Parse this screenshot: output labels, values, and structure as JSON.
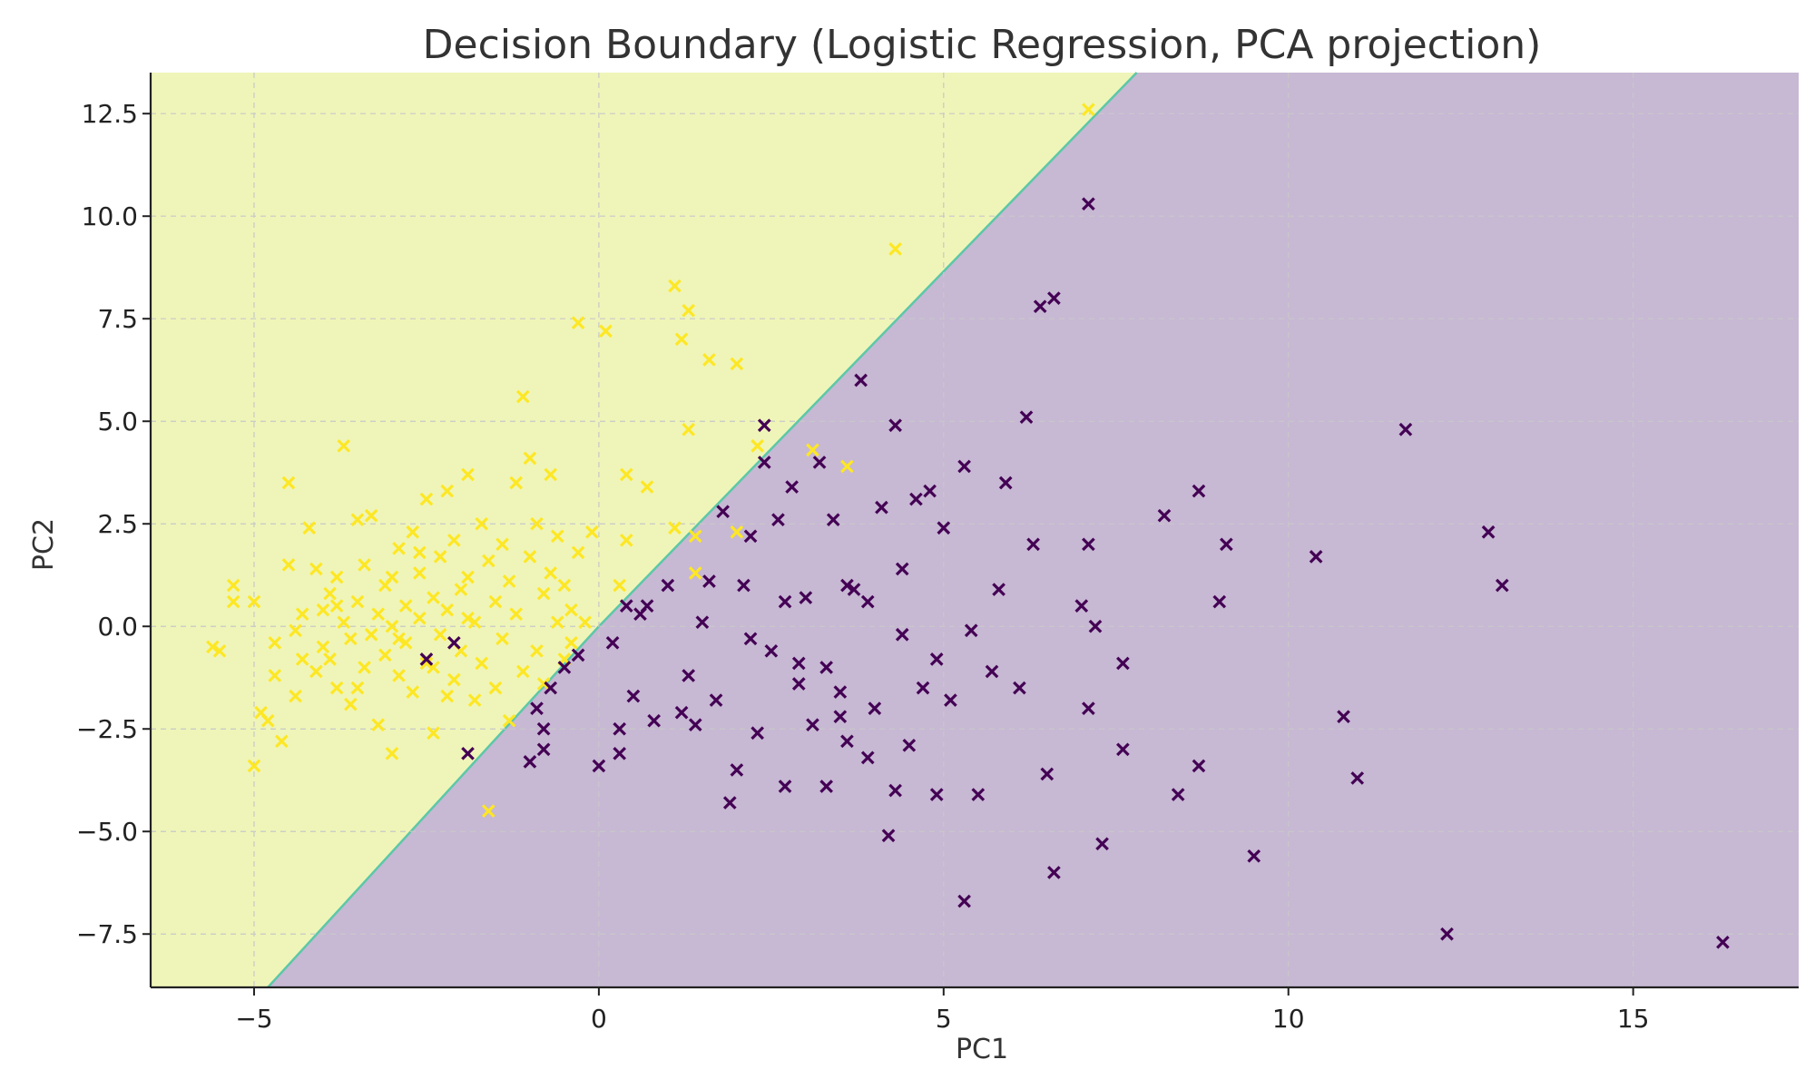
{
  "chart_data": {
    "type": "scatter",
    "title": "Decision Boundary (Logistic Regression, PCA projection)",
    "xlabel": "PC1",
    "ylabel": "PC2",
    "xlim": [
      -6.5,
      17.4
    ],
    "ylim": [
      -8.8,
      13.5
    ],
    "xticks": [
      -5,
      0,
      5,
      10,
      15
    ],
    "xtick_labels": [
      "−5",
      "0",
      "5",
      "10",
      "15"
    ],
    "yticks": [
      -7.5,
      -5.0,
      -2.5,
      0.0,
      2.5,
      5.0,
      7.5,
      10.0,
      12.5
    ],
    "ytick_labels": [
      "−7.5",
      "−5.0",
      "−2.5",
      "0.0",
      "2.5",
      "5.0",
      "7.5",
      "10.0",
      "12.5"
    ],
    "grid": true,
    "legend": "none",
    "colors": {
      "class_0_point": "#440154",
      "class_1_point": "#fde725",
      "class_0_region": "#c7b8d4",
      "class_1_region": "#eff5b8",
      "boundary": "#5cc8a8",
      "grid": "#c8c8c8",
      "axis": "#222222"
    },
    "decision_boundary": {
      "model": "logistic regression",
      "line": [
        [
          -4.8,
          -8.8
        ],
        [
          0.0,
          0.0
        ],
        [
          7.8,
          13.5
        ]
      ]
    },
    "series": [
      {
        "class": 1,
        "marker": "x",
        "points": [
          [
            -5.6,
            -0.5
          ],
          [
            -5.5,
            -0.6
          ],
          [
            -5.3,
            0.6
          ],
          [
            -5.3,
            1.0
          ],
          [
            -5.0,
            0.6
          ],
          [
            -5.0,
            -3.4
          ],
          [
            -4.9,
            -2.1
          ],
          [
            -4.8,
            -2.3
          ],
          [
            -4.7,
            -0.4
          ],
          [
            -4.7,
            -1.2
          ],
          [
            -4.6,
            -2.8
          ],
          [
            -4.5,
            3.5
          ],
          [
            -4.5,
            1.5
          ],
          [
            -4.4,
            -0.1
          ],
          [
            -4.4,
            -1.7
          ],
          [
            -4.3,
            0.3
          ],
          [
            -4.2,
            2.4
          ],
          [
            -4.1,
            -1.1
          ],
          [
            -4.1,
            1.4
          ],
          [
            -4.0,
            -0.5
          ],
          [
            -4.0,
            0.4
          ],
          [
            -3.9,
            -0.8
          ],
          [
            -3.9,
            0.8
          ],
          [
            -3.8,
            1.2
          ],
          [
            -3.8,
            -1.5
          ],
          [
            -3.7,
            0.1
          ],
          [
            -3.7,
            4.4
          ],
          [
            -3.6,
            -0.3
          ],
          [
            -3.6,
            -1.9
          ],
          [
            -3.5,
            2.6
          ],
          [
            -3.5,
            0.6
          ],
          [
            -3.4,
            -1.0
          ],
          [
            -3.4,
            1.5
          ],
          [
            -3.3,
            -0.2
          ],
          [
            -3.3,
            2.7
          ],
          [
            -3.2,
            0.3
          ],
          [
            -3.2,
            -2.4
          ],
          [
            -3.1,
            -0.7
          ],
          [
            -3.1,
            1.0
          ],
          [
            -3.0,
            -3.1
          ],
          [
            -3.0,
            0.0
          ],
          [
            -2.9,
            -1.2
          ],
          [
            -2.9,
            1.9
          ],
          [
            -2.8,
            0.5
          ],
          [
            -2.8,
            -0.4
          ],
          [
            -2.7,
            2.3
          ],
          [
            -2.7,
            -1.6
          ],
          [
            -2.6,
            1.3
          ],
          [
            -2.6,
            0.2
          ],
          [
            -2.5,
            3.1
          ],
          [
            -2.5,
            -0.9
          ],
          [
            -2.4,
            0.7
          ],
          [
            -2.4,
            -2.6
          ],
          [
            -2.3,
            1.7
          ],
          [
            -2.3,
            -0.2
          ],
          [
            -2.2,
            3.3
          ],
          [
            -2.2,
            0.4
          ],
          [
            -2.1,
            -1.3
          ],
          [
            -2.1,
            2.1
          ],
          [
            -2.0,
            0.9
          ],
          [
            -2.0,
            -0.6
          ],
          [
            -1.9,
            3.7
          ],
          [
            -1.9,
            1.2
          ],
          [
            -1.8,
            -1.8
          ],
          [
            -1.8,
            0.1
          ],
          [
            -1.7,
            2.5
          ],
          [
            -1.7,
            -0.9
          ],
          [
            -1.6,
            1.6
          ],
          [
            -1.6,
            -4.5
          ],
          [
            -1.5,
            0.6
          ],
          [
            -1.5,
            -1.5
          ],
          [
            -1.4,
            2.0
          ],
          [
            -1.4,
            -0.3
          ],
          [
            -1.3,
            1.1
          ],
          [
            -1.3,
            -2.3
          ],
          [
            -1.2,
            3.5
          ],
          [
            -1.2,
            0.3
          ],
          [
            -1.1,
            5.6
          ],
          [
            -1.1,
            -1.1
          ],
          [
            -1.0,
            1.7
          ],
          [
            -1.0,
            4.1
          ],
          [
            -0.9,
            -0.6
          ],
          [
            -0.9,
            2.5
          ],
          [
            -0.8,
            0.8
          ],
          [
            -0.8,
            -1.4
          ],
          [
            -0.7,
            3.7
          ],
          [
            -0.7,
            1.3
          ],
          [
            -0.6,
            0.1
          ],
          [
            -0.6,
            2.2
          ],
          [
            -0.5,
            -0.8
          ],
          [
            -0.5,
            1.0
          ],
          [
            -0.4,
            0.4
          ],
          [
            -0.4,
            -0.4
          ],
          [
            -0.3,
            1.8
          ],
          [
            -0.3,
            7.4
          ],
          [
            -0.2,
            0.1
          ],
          [
            -0.1,
            2.3
          ],
          [
            0.1,
            7.2
          ],
          [
            0.3,
            1.0
          ],
          [
            0.4,
            2.1
          ],
          [
            0.4,
            3.7
          ],
          [
            0.7,
            3.4
          ],
          [
            1.1,
            8.3
          ],
          [
            1.1,
            2.4
          ],
          [
            1.2,
            7.0
          ],
          [
            1.3,
            7.7
          ],
          [
            1.3,
            4.8
          ],
          [
            1.4,
            2.2
          ],
          [
            1.4,
            1.3
          ],
          [
            1.6,
            6.5
          ],
          [
            2.0,
            6.4
          ],
          [
            2.0,
            2.3
          ],
          [
            2.3,
            4.4
          ],
          [
            3.1,
            4.3
          ],
          [
            3.6,
            3.9
          ],
          [
            4.3,
            9.2
          ],
          [
            7.1,
            12.6
          ],
          [
            -2.9,
            -0.3
          ],
          [
            -3.5,
            -1.5
          ],
          [
            -4.3,
            -0.8
          ],
          [
            -2.6,
            1.8
          ],
          [
            -1.9,
            0.2
          ],
          [
            -2.4,
            -1.0
          ],
          [
            -3.8,
            0.5
          ],
          [
            -3.0,
            1.2
          ],
          [
            -2.2,
            -1.7
          ]
        ]
      },
      {
        "class": 0,
        "marker": "x",
        "points": [
          [
            -2.5,
            -0.8
          ],
          [
            -2.1,
            -0.4
          ],
          [
            -1.9,
            -3.1
          ],
          [
            -1.0,
            -3.3
          ],
          [
            -0.9,
            -2.0
          ],
          [
            -0.8,
            -2.5
          ],
          [
            -0.8,
            -3.0
          ],
          [
            -0.7,
            -1.5
          ],
          [
            -0.5,
            -1.0
          ],
          [
            -0.3,
            -0.7
          ],
          [
            0.0,
            -3.4
          ],
          [
            0.2,
            -0.4
          ],
          [
            0.3,
            -3.1
          ],
          [
            0.3,
            -2.5
          ],
          [
            0.4,
            0.5
          ],
          [
            0.5,
            -1.7
          ],
          [
            0.6,
            0.3
          ],
          [
            0.7,
            0.5
          ],
          [
            0.8,
            -2.3
          ],
          [
            1.0,
            1.0
          ],
          [
            1.2,
            -2.1
          ],
          [
            1.3,
            -1.2
          ],
          [
            1.4,
            -2.4
          ],
          [
            1.6,
            1.1
          ],
          [
            1.7,
            -1.8
          ],
          [
            1.8,
            2.8
          ],
          [
            1.9,
            -4.3
          ],
          [
            2.0,
            -3.5
          ],
          [
            2.1,
            1.0
          ],
          [
            2.2,
            2.2
          ],
          [
            2.3,
            -2.6
          ],
          [
            2.4,
            4.0
          ],
          [
            2.4,
            4.9
          ],
          [
            2.5,
            -0.6
          ],
          [
            2.6,
            2.6
          ],
          [
            2.7,
            -3.9
          ],
          [
            2.8,
            3.4
          ],
          [
            2.9,
            -1.4
          ],
          [
            3.0,
            0.7
          ],
          [
            3.1,
            -2.4
          ],
          [
            3.2,
            4.0
          ],
          [
            3.3,
            -3.9
          ],
          [
            3.3,
            -1.0
          ],
          [
            3.4,
            2.6
          ],
          [
            3.5,
            -2.2
          ],
          [
            3.6,
            1.0
          ],
          [
            3.7,
            0.9
          ],
          [
            3.8,
            6.0
          ],
          [
            3.9,
            -3.2
          ],
          [
            4.0,
            -2.0
          ],
          [
            4.1,
            2.9
          ],
          [
            4.2,
            -5.1
          ],
          [
            4.3,
            4.9
          ],
          [
            4.3,
            -4.0
          ],
          [
            4.4,
            1.4
          ],
          [
            4.5,
            -2.9
          ],
          [
            4.6,
            3.1
          ],
          [
            4.7,
            -1.5
          ],
          [
            4.8,
            3.3
          ],
          [
            4.9,
            -4.1
          ],
          [
            5.0,
            2.4
          ],
          [
            5.1,
            -1.8
          ],
          [
            5.3,
            3.9
          ],
          [
            5.3,
            -6.7
          ],
          [
            5.4,
            -0.1
          ],
          [
            5.5,
            -4.1
          ],
          [
            5.7,
            -1.1
          ],
          [
            5.9,
            3.5
          ],
          [
            6.1,
            -1.5
          ],
          [
            6.2,
            5.1
          ],
          [
            6.3,
            2.0
          ],
          [
            6.4,
            7.8
          ],
          [
            6.5,
            -3.6
          ],
          [
            6.6,
            8.0
          ],
          [
            6.6,
            -6.0
          ],
          [
            7.0,
            0.5
          ],
          [
            7.1,
            10.3
          ],
          [
            7.1,
            2.0
          ],
          [
            7.1,
            -2.0
          ],
          [
            7.2,
            0.0
          ],
          [
            7.3,
            -5.3
          ],
          [
            7.6,
            -0.9
          ],
          [
            7.6,
            -3.0
          ],
          [
            8.2,
            2.7
          ],
          [
            8.4,
            -4.1
          ],
          [
            8.7,
            3.3
          ],
          [
            8.7,
            -3.4
          ],
          [
            9.0,
            0.6
          ],
          [
            9.1,
            2.0
          ],
          [
            9.5,
            -5.6
          ],
          [
            10.4,
            1.7
          ],
          [
            10.8,
            -2.2
          ],
          [
            11.0,
            -3.7
          ],
          [
            11.7,
            4.8
          ],
          [
            12.3,
            -7.5
          ],
          [
            12.9,
            2.3
          ],
          [
            13.1,
            1.0
          ],
          [
            16.3,
            -7.7
          ],
          [
            2.7,
            0.6
          ],
          [
            3.5,
            -1.6
          ],
          [
            4.9,
            -0.8
          ],
          [
            2.2,
            -0.3
          ],
          [
            3.9,
            0.6
          ],
          [
            5.8,
            0.9
          ],
          [
            1.5,
            0.1
          ],
          [
            4.4,
            -0.2
          ],
          [
            2.9,
            -0.9
          ],
          [
            3.6,
            -2.8
          ]
        ]
      }
    ]
  }
}
